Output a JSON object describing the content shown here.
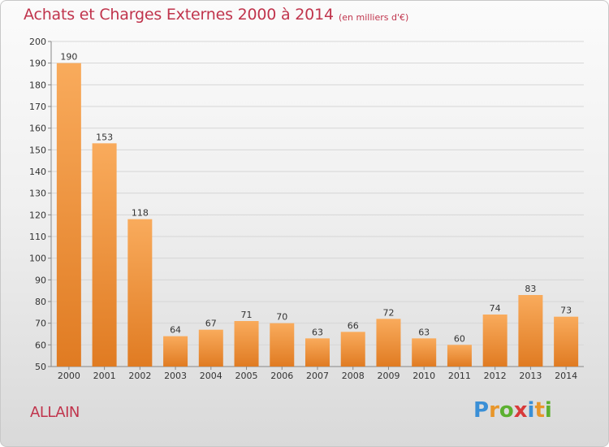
{
  "title": "Achats et Charges Externes 2000 à 2014",
  "subtitle": "(en milliers d'€)",
  "commune": "ALLAIN",
  "logo": [
    "P",
    "r",
    "o",
    "x",
    "i",
    "t",
    "i"
  ],
  "colors": {
    "title": "#c0344c",
    "bar_light": "#f7a656",
    "bar_dark": "#e07f25"
  },
  "chart_data": {
    "type": "bar",
    "title": "Achats et Charges Externes 2000 à 2014",
    "subtitle": "(en milliers d'€)",
    "categories": [
      "2000",
      "2001",
      "2002",
      "2003",
      "2004",
      "2005",
      "2006",
      "2007",
      "2008",
      "2009",
      "2010",
      "2011",
      "2012",
      "2013",
      "2014"
    ],
    "values": [
      190,
      153,
      118,
      64,
      67,
      71,
      70,
      63,
      66,
      72,
      63,
      60,
      74,
      83,
      73
    ],
    "ylim": [
      50,
      200
    ],
    "yticks": [
      50,
      60,
      70,
      80,
      90,
      100,
      110,
      120,
      130,
      140,
      150,
      160,
      170,
      180,
      190,
      200
    ],
    "grid": true,
    "xlabel": "",
    "ylabel": ""
  }
}
